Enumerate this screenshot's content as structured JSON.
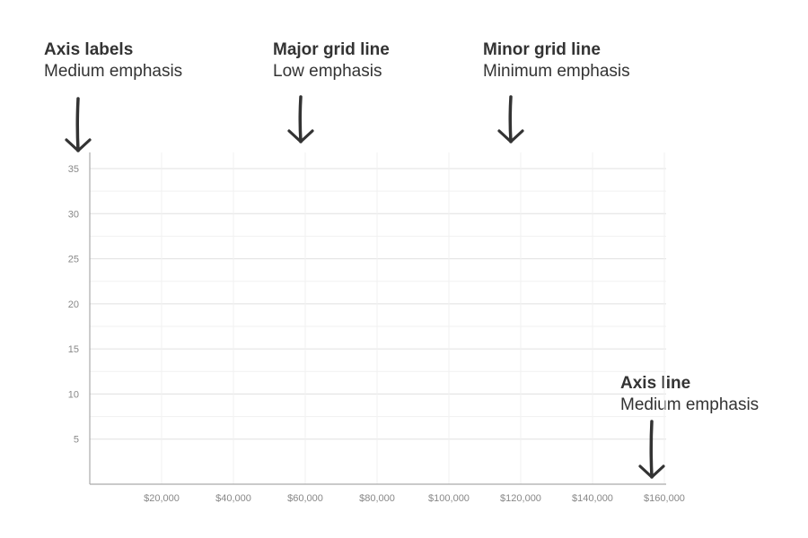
{
  "callouts": {
    "axis_labels": {
      "title": "Axis labels",
      "subtitle": "Medium emphasis"
    },
    "major_grid": {
      "title": "Major grid line",
      "subtitle": "Low emphasis"
    },
    "minor_grid": {
      "title": "Minor grid line",
      "subtitle": "Minimum emphasis"
    },
    "axis_line": {
      "title": "Axis line",
      "subtitle": "Medium emphasis"
    }
  },
  "chart_data": {
    "type": "scatter",
    "title": "",
    "xlabel": "",
    "ylabel": "",
    "xlim": [
      0,
      160000
    ],
    "ylim": [
      0,
      37
    ],
    "x_ticks": [
      20000,
      40000,
      60000,
      80000,
      100000,
      120000,
      140000,
      160000
    ],
    "x_tick_labels": [
      "$20,000",
      "$40,000",
      "$60,000",
      "$80,000",
      "$100,000",
      "$120,000",
      "$140,000",
      "$160,000"
    ],
    "y_ticks": [
      5,
      10,
      15,
      20,
      25,
      30,
      35
    ],
    "y_tick_labels": [
      "5",
      "10",
      "15",
      "20",
      "25",
      "30",
      "35"
    ],
    "series": [],
    "grid": true
  },
  "colors": {
    "text": "#333333",
    "tick_label": "#888888",
    "axis_line": "#aaaaaa",
    "major_grid": "#e0e0e0",
    "minor_grid": "#f1f1f1",
    "arrow": "#333333"
  }
}
